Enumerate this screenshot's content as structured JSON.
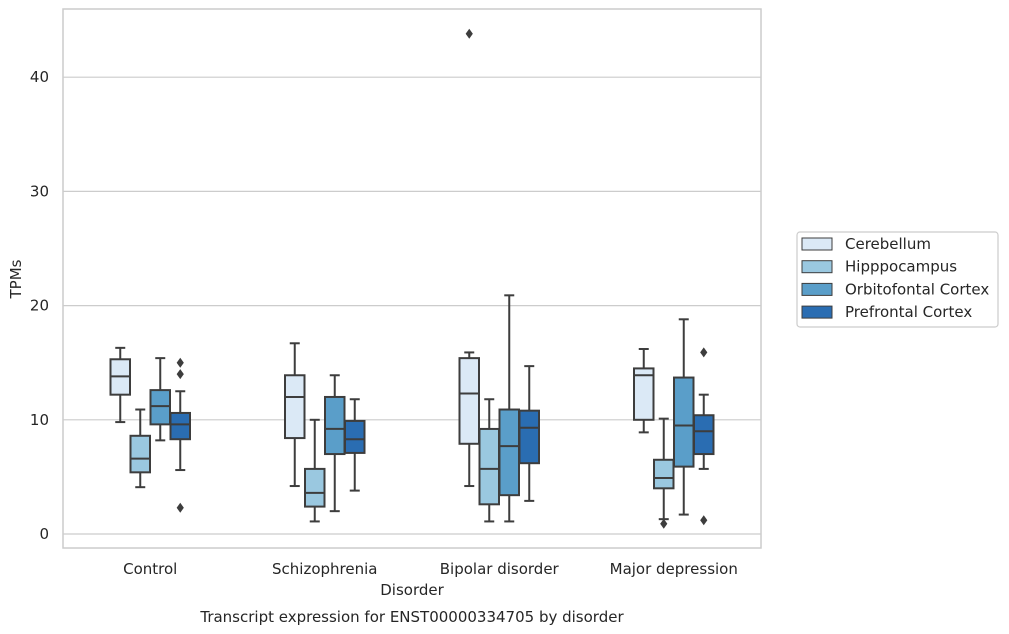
{
  "chart_data": {
    "type": "box",
    "title": "",
    "caption": "Transcript expression for ENST00000334705 by disorder",
    "xlabel": "Disorder",
    "ylabel": "TPMs",
    "ylim": [
      -1.2,
      46
    ],
    "yticks": [
      0,
      10,
      20,
      30,
      40
    ],
    "grid": "horizontal",
    "legend_position": "right",
    "categories": [
      "Control",
      "Schizophrenia",
      "Bipolar disorder",
      "Major depression"
    ],
    "series": [
      {
        "name": "Cerebellum",
        "color": "#dbe9f6",
        "boxes": [
          {
            "whislo": 9.8,
            "q1": 12.2,
            "med": 13.8,
            "q3": 15.3,
            "whishi": 16.3,
            "fliers": []
          },
          {
            "whislo": 4.2,
            "q1": 8.4,
            "med": 12.0,
            "q3": 13.9,
            "whishi": 16.7,
            "fliers": []
          },
          {
            "whislo": 4.2,
            "q1": 7.9,
            "med": 12.3,
            "q3": 15.4,
            "whishi": 15.9,
            "fliers": [
              43.8
            ]
          },
          {
            "whislo": 8.9,
            "q1": 10.0,
            "med": 13.9,
            "q3": 14.5,
            "whishi": 16.2,
            "fliers": []
          }
        ]
      },
      {
        "name": "Hipppocampus",
        "color": "#9ac8e0",
        "boxes": [
          {
            "whislo": 4.1,
            "q1": 5.4,
            "med": 6.6,
            "q3": 8.6,
            "whishi": 10.9,
            "fliers": []
          },
          {
            "whislo": 1.1,
            "q1": 2.4,
            "med": 3.6,
            "q3": 5.7,
            "whishi": 10.0,
            "fliers": []
          },
          {
            "whislo": 1.1,
            "q1": 2.6,
            "med": 5.7,
            "q3": 9.2,
            "whishi": 11.8,
            "fliers": []
          },
          {
            "whislo": 1.3,
            "q1": 4.0,
            "med": 4.9,
            "q3": 6.5,
            "whishi": 10.1,
            "fliers": [
              0.9
            ]
          }
        ]
      },
      {
        "name": "Orbitofontal Cortex",
        "color": "#5a9ec9",
        "boxes": [
          {
            "whislo": 8.2,
            "q1": 9.6,
            "med": 11.2,
            "q3": 12.6,
            "whishi": 15.4,
            "fliers": []
          },
          {
            "whislo": 2.0,
            "q1": 7.0,
            "med": 9.2,
            "q3": 12.0,
            "whishi": 13.9,
            "fliers": []
          },
          {
            "whislo": 1.1,
            "q1": 3.4,
            "med": 7.7,
            "q3": 10.9,
            "whishi": 20.9,
            "fliers": []
          },
          {
            "whislo": 1.7,
            "q1": 5.9,
            "med": 9.5,
            "q3": 13.7,
            "whishi": 18.8,
            "fliers": []
          }
        ]
      },
      {
        "name": "Prefrontal Cortex",
        "color": "#2a6db2",
        "boxes": [
          {
            "whislo": 5.6,
            "q1": 8.3,
            "med": 9.6,
            "q3": 10.6,
            "whishi": 12.5,
            "fliers": [
              15.0,
              14.0,
              2.3
            ]
          },
          {
            "whislo": 3.8,
            "q1": 7.1,
            "med": 8.3,
            "q3": 9.9,
            "whishi": 11.8,
            "fliers": []
          },
          {
            "whislo": 2.9,
            "q1": 6.2,
            "med": 9.3,
            "q3": 10.8,
            "whishi": 14.7,
            "fliers": []
          },
          {
            "whislo": 5.7,
            "q1": 7.0,
            "med": 9.0,
            "q3": 10.4,
            "whishi": 12.2,
            "fliers": [
              15.9,
              1.2
            ]
          }
        ]
      }
    ]
  }
}
